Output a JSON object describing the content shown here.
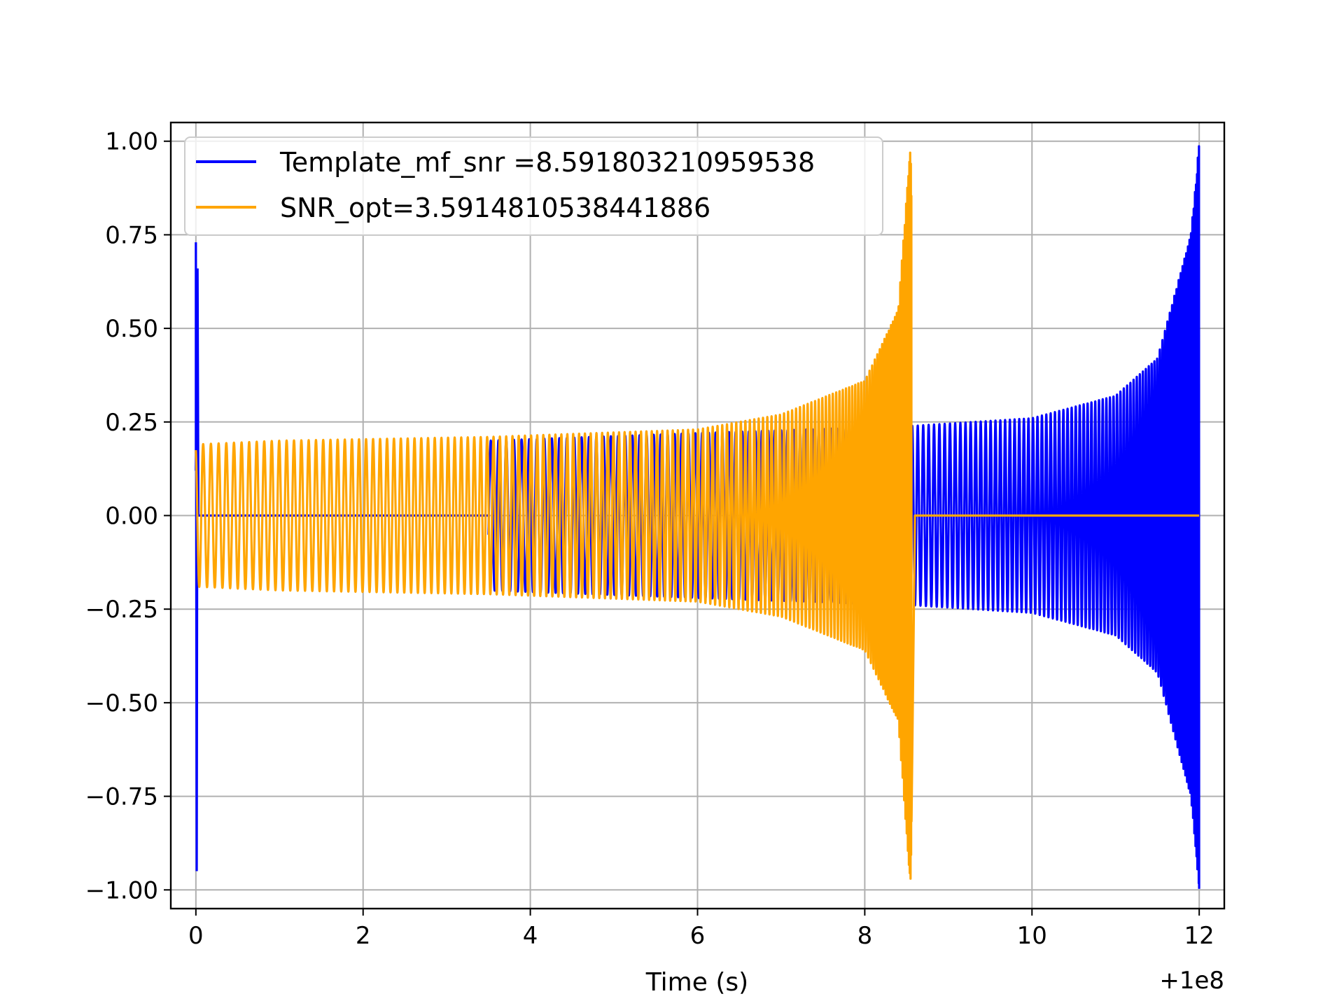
{
  "chart_data": {
    "type": "line",
    "title": "",
    "xlabel": "Time (s)",
    "ylabel": "",
    "x_offset_label": "+1e8",
    "xlim": [
      -0.3,
      12.3
    ],
    "ylim": [
      -1.05,
      1.05
    ],
    "grid": true,
    "legend_placement": "upper-left",
    "x_ticks": [
      0,
      2,
      4,
      6,
      8,
      10,
      12
    ],
    "x_tick_labels": [
      "0",
      "2",
      "4",
      "6",
      "8",
      "10",
      "12"
    ],
    "y_ticks": [
      1.0,
      0.75,
      0.5,
      0.25,
      0.0,
      -0.25,
      -0.5,
      -0.75,
      -1.0
    ],
    "y_tick_labels": [
      "1.00",
      "0.75",
      "0.50",
      "0.25",
      "0.00",
      "−0.25",
      "−0.50",
      "−0.75",
      "−1.00"
    ],
    "series": [
      {
        "name": "Template_mf_snr =8.591803210959538",
        "color": "#0000ff",
        "description_points": {
          "x": [
            0.0,
            0.0,
            3.5,
            6.0,
            8.6,
            10.0,
            11.0,
            11.5,
            11.9,
            12.0
          ],
          "amplitude": [
            0.73,
            -0.95,
            0.2,
            0.22,
            0.24,
            0.26,
            0.32,
            0.42,
            0.75,
            1.0
          ]
        }
      },
      {
        "name": "SNR_opt=3.5914810538441886",
        "color": "#ffa500",
        "description_points": {
          "x": [
            0.0,
            1.0,
            3.5,
            6.0,
            7.0,
            8.0,
            8.4,
            8.55,
            8.6,
            12.0
          ],
          "amplitude": [
            0.19,
            0.2,
            0.21,
            0.23,
            0.27,
            0.36,
            0.55,
            1.0,
            0.0,
            0.0
          ]
        }
      }
    ]
  }
}
